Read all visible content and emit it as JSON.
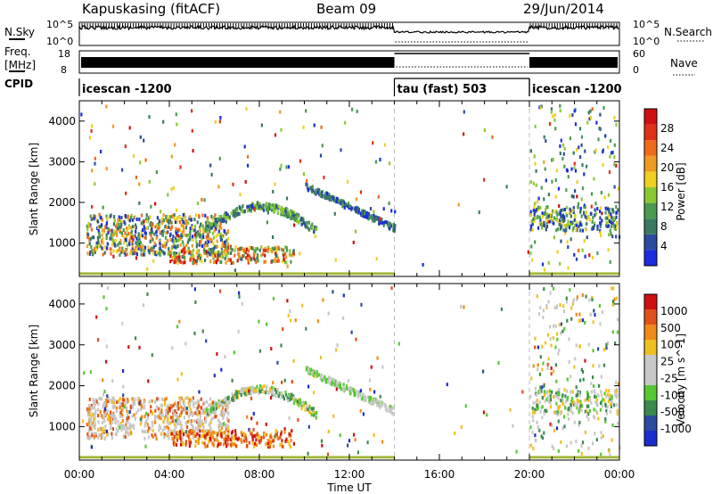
{
  "header": {
    "title": "Kapuskasing (fitACF)",
    "beam": "Beam 09",
    "date": "29/Jun/2014"
  },
  "left_labels": {
    "nsky": "N.Sky",
    "nsky_top": "10^5",
    "nsky_bottom": "10^0",
    "freq": "Freq.",
    "freq_unit": "[MHz]",
    "freq_top": "18",
    "freq_bottom": "8",
    "cpid": "CPID"
  },
  "right_labels": {
    "nsearch_top": "10^5",
    "nsearch_bottom": "10^0",
    "nsearch": "N.Search",
    "nave_top": "60",
    "nave_bottom": "0",
    "nave": "Nave"
  },
  "cpid_segments": [
    {
      "label": "icescan -1200",
      "start": 0,
      "end": 14
    },
    {
      "label": "tau (fast) 503",
      "start": 14,
      "end": 20
    },
    {
      "label": "icescan -1200",
      "start": 20,
      "end": 24
    }
  ],
  "chart_data": [
    {
      "type": "heatmap",
      "ylabel": "Slant Range [km]",
      "y_ticks": [
        "1000",
        "2000",
        "3000",
        "4000"
      ],
      "ylim": [
        180,
        4500
      ],
      "xlim": [
        0,
        24
      ],
      "colorbar": {
        "label": "Power [dB]",
        "ticks": [
          "4",
          "8",
          "12",
          "16",
          "20",
          "24",
          "28"
        ],
        "colors": [
          "#1a2be0",
          "#2c4aa0",
          "#3a7a60",
          "#4a9a50",
          "#8ac832",
          "#f0d020",
          "#f09a20",
          "#f06a18",
          "#e03018",
          "#d01010"
        ]
      }
    },
    {
      "type": "heatmap",
      "ylabel": "Slant Range [km]",
      "y_ticks": [
        "1000",
        "2000",
        "3000",
        "4000"
      ],
      "ylim": [
        180,
        4500
      ],
      "xlim": [
        0,
        24
      ],
      "xlabel": "Time UT",
      "x_ticks": [
        "00:00",
        "04:00",
        "08:00",
        "12:00",
        "16:00",
        "20:00",
        "00:00"
      ],
      "colorbar": {
        "label": "Velocity [m s^-1]",
        "ticks": [
          "1000",
          "500",
          "100",
          "25",
          "-25",
          "-100",
          "-500",
          "-1000"
        ],
        "colors": [
          "#1a2bd0",
          "#2c4aa0",
          "#3a8a50",
          "#56c832",
          "#c8c8c8",
          "#c8c8c8",
          "#f0c020",
          "#f08a18",
          "#e05018",
          "#d01010"
        ]
      }
    }
  ],
  "colors": {
    "gap_line": "#bbbbbb",
    "ground_band": "#a8b840"
  }
}
